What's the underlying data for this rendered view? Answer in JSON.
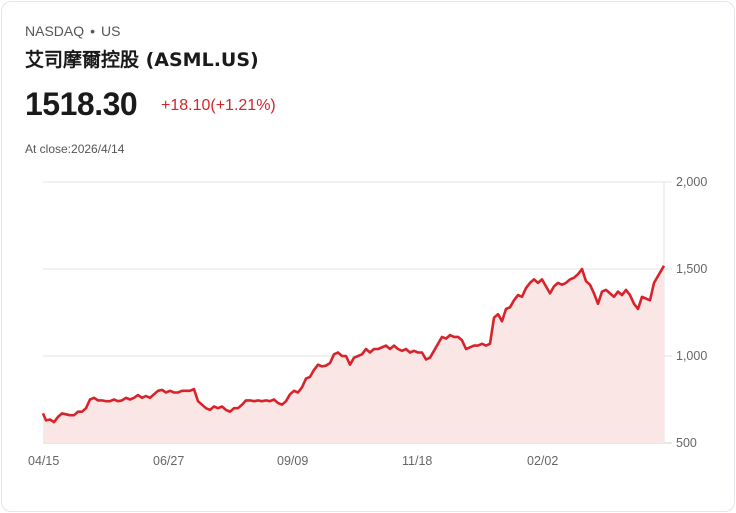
{
  "header": {
    "exchange": "NASDAQ",
    "separator": "•",
    "market": "US",
    "title": "艾司摩爾控股 (ASML.US)"
  },
  "quote": {
    "price": "1518.30",
    "change": "+18.10(+1.21%)",
    "close_label": "At close:2026/4/14"
  },
  "colors": {
    "line": "#d8232a",
    "fill": "#fbe6e6",
    "grid": "#e3e3e3"
  },
  "chart_data": {
    "type": "area",
    "title": "",
    "xlabel": "",
    "ylabel": "",
    "ylim": [
      500,
      2000
    ],
    "y_ticks": [
      "2,000",
      "1,500",
      "1,000",
      "500"
    ],
    "y_tick_values": [
      2000,
      1500,
      1000,
      500
    ],
    "x_ticks": [
      "04/15",
      "06/27",
      "09/09",
      "11/18",
      "02/02"
    ],
    "grid": true,
    "legend": "none",
    "series": [
      {
        "name": "ASML.US",
        "points": [
          [
            43,
            670
          ],
          [
            46,
            630
          ],
          [
            50,
            635
          ],
          [
            54,
            620
          ],
          [
            58,
            650
          ],
          [
            62,
            670
          ],
          [
            66,
            665
          ],
          [
            70,
            660
          ],
          [
            74,
            660
          ],
          [
            78,
            680
          ],
          [
            82,
            680
          ],
          [
            86,
            700
          ],
          [
            90,
            750
          ],
          [
            94,
            760
          ],
          [
            98,
            745
          ],
          [
            102,
            745
          ],
          [
            106,
            740
          ],
          [
            110,
            740
          ],
          [
            114,
            750
          ],
          [
            118,
            740
          ],
          [
            122,
            745
          ],
          [
            126,
            760
          ],
          [
            130,
            750
          ],
          [
            134,
            760
          ],
          [
            138,
            775
          ],
          [
            142,
            760
          ],
          [
            146,
            770
          ],
          [
            150,
            760
          ],
          [
            154,
            780
          ],
          [
            158,
            800
          ],
          [
            162,
            805
          ],
          [
            166,
            790
          ],
          [
            170,
            800
          ],
          [
            174,
            790
          ],
          [
            178,
            790
          ],
          [
            182,
            800
          ],
          [
            186,
            800
          ],
          [
            190,
            800
          ],
          [
            194,
            810
          ],
          [
            198,
            740
          ],
          [
            202,
            720
          ],
          [
            206,
            700
          ],
          [
            210,
            690
          ],
          [
            214,
            710
          ],
          [
            218,
            700
          ],
          [
            222,
            710
          ],
          [
            226,
            690
          ],
          [
            230,
            680
          ],
          [
            234,
            700
          ],
          [
            238,
            700
          ],
          [
            242,
            720
          ],
          [
            246,
            745
          ],
          [
            250,
            745
          ],
          [
            254,
            740
          ],
          [
            258,
            745
          ],
          [
            262,
            740
          ],
          [
            266,
            745
          ],
          [
            270,
            740
          ],
          [
            274,
            750
          ],
          [
            278,
            730
          ],
          [
            282,
            720
          ],
          [
            286,
            740
          ],
          [
            290,
            780
          ],
          [
            294,
            800
          ],
          [
            298,
            790
          ],
          [
            302,
            820
          ],
          [
            306,
            870
          ],
          [
            310,
            880
          ],
          [
            314,
            920
          ],
          [
            318,
            950
          ],
          [
            322,
            940
          ],
          [
            326,
            945
          ],
          [
            330,
            960
          ],
          [
            334,
            1010
          ],
          [
            338,
            1020
          ],
          [
            342,
            1000
          ],
          [
            346,
            1000
          ],
          [
            350,
            950
          ],
          [
            354,
            990
          ],
          [
            358,
            1000
          ],
          [
            362,
            1010
          ],
          [
            366,
            1040
          ],
          [
            370,
            1020
          ],
          [
            374,
            1040
          ],
          [
            378,
            1040
          ],
          [
            382,
            1050
          ],
          [
            386,
            1060
          ],
          [
            390,
            1040
          ],
          [
            394,
            1060
          ],
          [
            398,
            1040
          ],
          [
            402,
            1030
          ],
          [
            406,
            1040
          ],
          [
            410,
            1020
          ],
          [
            414,
            1030
          ],
          [
            418,
            1020
          ],
          [
            422,
            1020
          ],
          [
            426,
            980
          ],
          [
            430,
            990
          ],
          [
            434,
            1030
          ],
          [
            438,
            1070
          ],
          [
            442,
            1110
          ],
          [
            446,
            1100
          ],
          [
            450,
            1120
          ],
          [
            454,
            1110
          ],
          [
            458,
            1110
          ],
          [
            462,
            1090
          ],
          [
            466,
            1040
          ],
          [
            470,
            1050
          ],
          [
            474,
            1060
          ],
          [
            478,
            1060
          ],
          [
            482,
            1070
          ],
          [
            486,
            1060
          ],
          [
            490,
            1070
          ],
          [
            494,
            1220
          ],
          [
            498,
            1240
          ],
          [
            502,
            1200
          ],
          [
            506,
            1270
          ],
          [
            510,
            1280
          ],
          [
            514,
            1320
          ],
          [
            518,
            1350
          ],
          [
            522,
            1340
          ],
          [
            526,
            1390
          ],
          [
            530,
            1420
          ],
          [
            534,
            1440
          ],
          [
            538,
            1420
          ],
          [
            542,
            1440
          ],
          [
            546,
            1400
          ],
          [
            550,
            1360
          ],
          [
            554,
            1400
          ],
          [
            558,
            1420
          ],
          [
            562,
            1410
          ],
          [
            566,
            1420
          ],
          [
            570,
            1440
          ],
          [
            574,
            1450
          ],
          [
            578,
            1470
          ],
          [
            582,
            1500
          ],
          [
            586,
            1430
          ],
          [
            590,
            1410
          ],
          [
            594,
            1360
          ],
          [
            598,
            1300
          ],
          [
            602,
            1370
          ],
          [
            606,
            1380
          ],
          [
            610,
            1360
          ],
          [
            614,
            1340
          ],
          [
            618,
            1370
          ],
          [
            622,
            1350
          ],
          [
            626,
            1380
          ],
          [
            630,
            1350
          ],
          [
            634,
            1300
          ],
          [
            638,
            1270
          ],
          [
            642,
            1340
          ],
          [
            646,
            1330
          ],
          [
            650,
            1320
          ],
          [
            654,
            1420
          ],
          [
            658,
            1460
          ],
          [
            664,
            1518.3
          ]
        ]
      }
    ]
  }
}
